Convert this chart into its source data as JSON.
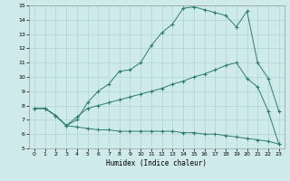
{
  "xlabel": "Humidex (Indice chaleur)",
  "ylabel": "",
  "bg_color": "#ceeaea",
  "grid_color": "#b0d4d4",
  "line_color": "#2d7d6e",
  "xlim": [
    -0.5,
    23.5
  ],
  "ylim": [
    5,
    15
  ],
  "xticks": [
    0,
    1,
    2,
    3,
    4,
    5,
    6,
    7,
    8,
    9,
    10,
    11,
    12,
    13,
    14,
    15,
    16,
    17,
    18,
    19,
    20,
    21,
    22,
    23
  ],
  "yticks": [
    5,
    6,
    7,
    8,
    9,
    10,
    11,
    12,
    13,
    14,
    15
  ],
  "series": {
    "main": {
      "x": [
        0,
        1,
        2,
        3,
        4,
        5,
        6,
        7,
        8,
        9,
        10,
        11,
        12,
        13,
        14,
        15,
        16,
        17,
        18,
        19,
        20,
        21,
        22,
        23
      ],
      "y": [
        7.8,
        7.8,
        7.3,
        6.6,
        7.0,
        8.2,
        9.0,
        9.5,
        10.4,
        10.5,
        11.0,
        12.2,
        13.1,
        13.7,
        14.8,
        14.9,
        14.7,
        14.5,
        14.3,
        13.5,
        14.6,
        11.0,
        9.9,
        7.6
      ]
    },
    "upper": {
      "x": [
        0,
        1,
        2,
        3,
        4,
        5,
        6,
        7,
        8,
        9,
        10,
        11,
        12,
        13,
        14,
        15,
        16,
        17,
        18,
        19,
        20,
        21,
        22,
        23
      ],
      "y": [
        7.8,
        7.8,
        7.3,
        6.6,
        7.2,
        7.8,
        8.0,
        8.2,
        8.4,
        8.6,
        8.8,
        9.0,
        9.2,
        9.5,
        9.7,
        10.0,
        10.2,
        10.5,
        10.8,
        11.0,
        9.9,
        9.3,
        7.6,
        5.3
      ]
    },
    "lower": {
      "x": [
        0,
        1,
        2,
        3,
        4,
        5,
        6,
        7,
        8,
        9,
        10,
        11,
        12,
        13,
        14,
        15,
        16,
        17,
        18,
        19,
        20,
        21,
        22,
        23
      ],
      "y": [
        7.8,
        7.8,
        7.3,
        6.6,
        6.5,
        6.4,
        6.3,
        6.3,
        6.2,
        6.2,
        6.2,
        6.2,
        6.2,
        6.2,
        6.1,
        6.1,
        6.0,
        6.0,
        5.9,
        5.8,
        5.7,
        5.6,
        5.5,
        5.3
      ]
    }
  }
}
